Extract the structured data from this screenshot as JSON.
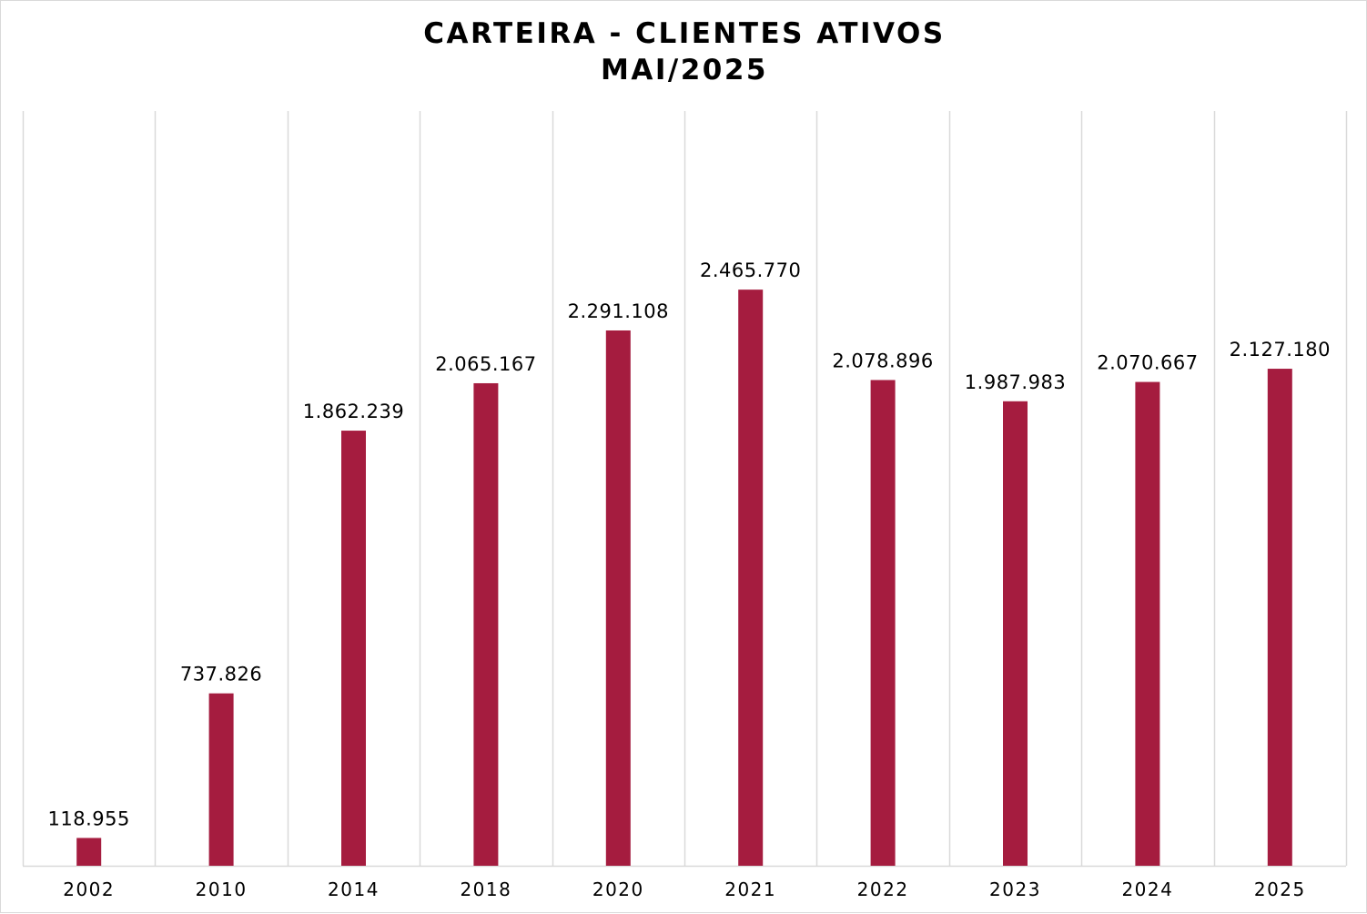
{
  "chart_data": {
    "type": "bar",
    "title": [
      "CARTEIRA - CLIENTES ATIVOS",
      "MAI/2025"
    ],
    "xlabel": "",
    "ylabel": "",
    "categories": [
      "2002",
      "2010",
      "2014",
      "2018",
      "2020",
      "2021",
      "2022",
      "2023",
      "2024",
      "2025"
    ],
    "values": [
      118955,
      737826,
      1862239,
      2065167,
      2291108,
      2465770,
      2078896,
      1987983,
      2070667,
      2127180
    ],
    "data_labels": [
      "118.955",
      "737.826",
      "1.862.239",
      "2.065.167",
      "2.291.108",
      "2.465.770",
      "2.078.896",
      "1.987.983",
      "2.070.667",
      "2.127.180"
    ],
    "ylim": [
      0,
      3000000
    ],
    "grid": "vertical separators between categories",
    "legend": "none",
    "colors": {
      "bar": "#a51c3f",
      "grid": "#d9d9d9",
      "axis": "#d9d9d9",
      "text": "#000000"
    }
  }
}
